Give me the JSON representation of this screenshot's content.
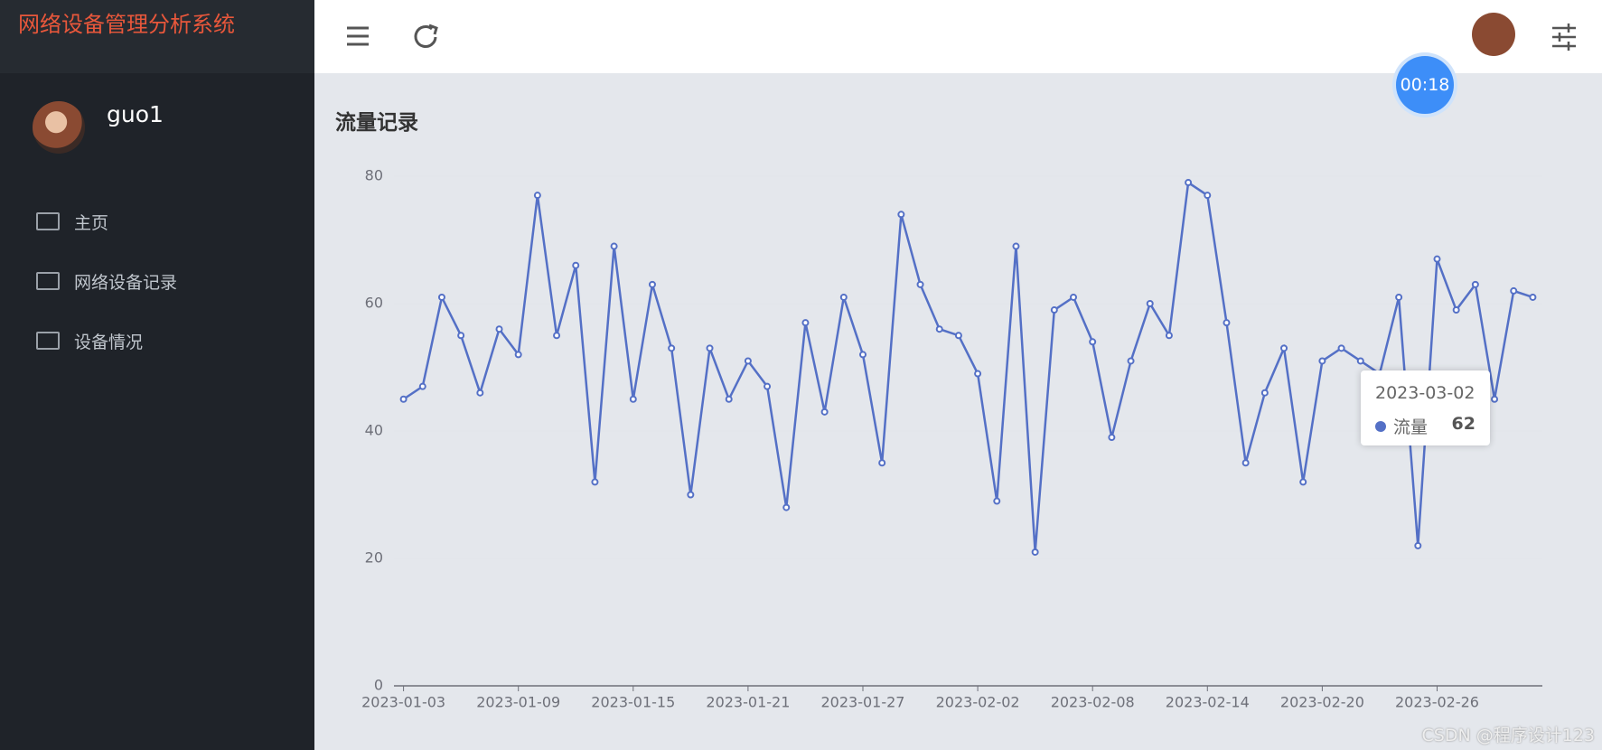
{
  "sidebar": {
    "app_title": "网络设备管理分析系统",
    "username": "guo1",
    "menu": [
      "主页",
      "网络设备记录",
      "设备情况"
    ]
  },
  "page_title": "流量记录",
  "timer": "00:18",
  "watermark": "CSDN @程序设计123",
  "chart_data": {
    "type": "line",
    "categories": [
      "2023-01-03",
      null,
      null,
      null,
      null,
      null,
      "2023-01-09",
      null,
      null,
      null,
      null,
      null,
      "2023-01-15",
      null,
      null,
      null,
      null,
      null,
      "2023-01-21",
      null,
      null,
      null,
      null,
      null,
      "2023-01-27",
      null,
      null,
      null,
      null,
      null,
      "2023-02-02",
      null,
      null,
      null,
      null,
      null,
      "2023-02-08",
      null,
      null,
      null,
      null,
      null,
      "2023-02-14",
      null,
      null,
      null,
      null,
      null,
      "2023-02-20",
      null,
      null,
      null,
      null,
      null,
      "2023-02-26",
      null,
      null,
      null,
      null,
      null
    ],
    "series": [
      {
        "name": "流量",
        "color": "#5470c6",
        "values": [
          45,
          47,
          61,
          55,
          46,
          56,
          52,
          77,
          55,
          66,
          32,
          69,
          45,
          63,
          53,
          30,
          53,
          45,
          51,
          47,
          28,
          57,
          43,
          61,
          52,
          35,
          74,
          63,
          56,
          55,
          49,
          29,
          69,
          21,
          59,
          61,
          54,
          39,
          51,
          60,
          55,
          79,
          77,
          57,
          35,
          46,
          53,
          32,
          51,
          53,
          51,
          49,
          61,
          22,
          67,
          59,
          63,
          45,
          62,
          61
        ]
      }
    ],
    "ylim": [
      0,
      80
    ],
    "yticks": [
      0,
      20,
      40,
      60,
      80
    ],
    "tooltip_title": "2023-03-02"
  }
}
